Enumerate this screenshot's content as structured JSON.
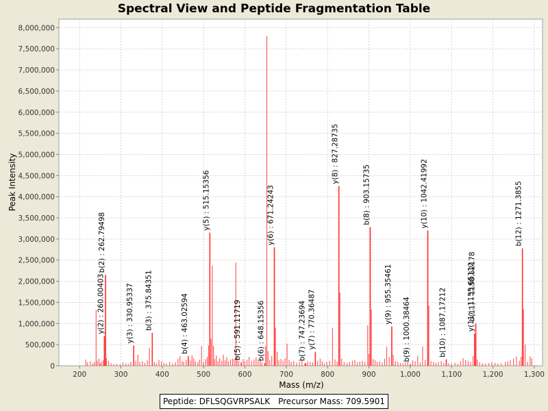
{
  "footer": {
    "peptide_label": "Peptide: DFLSQGVRPSALK",
    "precursor_label": "Precursor Mass: 709.5901"
  },
  "colors": {
    "peak": "#ff5c5c",
    "annotation_peak": "#ff3030",
    "grid": "#d4d4d4",
    "background": "#ece9d8",
    "plot_bg": "#ffffff"
  },
  "chart_data": {
    "type": "bar",
    "title": "Spectral View and Peptide Fragmentation Table",
    "xlabel": "Mass (m/z)",
    "ylabel": "Peak Intensity",
    "xlim": [
      150,
      1320
    ],
    "ylim": [
      0,
      8200000
    ],
    "xticks": [
      200,
      300,
      400,
      500,
      600,
      700,
      800,
      900,
      1000,
      1100,
      1200,
      1300
    ],
    "xtick_labels": [
      "200",
      "300",
      "400",
      "500",
      "600",
      "700",
      "800",
      "900",
      "1,000",
      "1,100",
      "1,200",
      "1,300"
    ],
    "yticks": [
      0,
      500000,
      1000000,
      1500000,
      2000000,
      2500000,
      3000000,
      3500000,
      4000000,
      4500000,
      5000000,
      5500000,
      6000000,
      6500000,
      7000000,
      7500000,
      8000000
    ],
    "ytick_labels": [
      "0",
      "500,000",
      "1,000,000",
      "1,500,000",
      "2,000,000",
      "2,500,000",
      "3,000,000",
      "3,500,000",
      "4,000,000",
      "4,500,000",
      "5,000,000",
      "5,500,000",
      "6,000,000",
      "6,500,000",
      "7,000,000",
      "7,500,000",
      "8,000,000"
    ],
    "grid": true,
    "annotations": [
      {
        "mz": 262.79498,
        "intensity": 2150000,
        "label": "b(2) : 262.79498"
      },
      {
        "mz": 260.00403,
        "intensity": 700000,
        "label": "y(2) : 260.00403"
      },
      {
        "mz": 330.95337,
        "intensity": 480000,
        "label": "y(3) : 330.95337"
      },
      {
        "mz": 375.84351,
        "intensity": 780000,
        "label": "b(3) : 375.84351"
      },
      {
        "mz": 463.02594,
        "intensity": 230000,
        "label": "b(4) : 463.02594"
      },
      {
        "mz": 515.15356,
        "intensity": 3150000,
        "label": "y(5) : 515.15356"
      },
      {
        "mz": 591.11719,
        "intensity": 80000,
        "label": "b(5) : 591.11719"
      },
      {
        "mz": 648.15356,
        "intensity": 60000,
        "label": "b(6) : 648.15356"
      },
      {
        "mz": 671.24243,
        "intensity": 2800000,
        "label": "y(6) : 671.24243"
      },
      {
        "mz": 747.23694,
        "intensity": 60000,
        "label": "b(7) : 747.23694"
      },
      {
        "mz": 770.36487,
        "intensity": 330000,
        "label": "y(7) : 770.36487"
      },
      {
        "mz": 827.28735,
        "intensity": 4250000,
        "label": "y(8) : 827.28735"
      },
      {
        "mz": 903.15735,
        "intensity": 3280000,
        "label": "b(8) : 903.15735"
      },
      {
        "mz": 955.35461,
        "intensity": 930000,
        "label": "y(9) : 955.35461"
      },
      {
        "mz": 1000.38464,
        "intensity": 40000,
        "label": "b(9) : 1000.38464"
      },
      {
        "mz": 1042.41992,
        "intensity": 3200000,
        "label": "y(10) : 1042.41992"
      },
      {
        "mz": 1087.17212,
        "intensity": 150000,
        "label": "b(10) : 1087.17212"
      },
      {
        "mz": 1155.65112,
        "intensity": 760000,
        "label": "y(11) : 1155.65112"
      },
      {
        "mz": 1158.52178,
        "intensity": 1000000,
        "label": "b(11) : 1158.52178"
      },
      {
        "mz": 1271.3855,
        "intensity": 2780000,
        "label": "b(12) : 1271.3855"
      }
    ],
    "peaks": [
      [
        215,
        150000
      ],
      [
        219,
        80000
      ],
      [
        226,
        110000
      ],
      [
        232,
        60000
      ],
      [
        236,
        90000
      ],
      [
        240,
        1320000
      ],
      [
        243,
        120000
      ],
      [
        247,
        170000
      ],
      [
        250,
        60000
      ],
      [
        253,
        90000
      ],
      [
        257,
        130000
      ],
      [
        260,
        700000
      ],
      [
        262.8,
        2150000
      ],
      [
        265,
        180000
      ],
      [
        270,
        120000
      ],
      [
        276,
        60000
      ],
      [
        283,
        40000
      ],
      [
        290,
        50000
      ],
      [
        298,
        40000
      ],
      [
        305,
        80000
      ],
      [
        312,
        60000
      ],
      [
        318,
        40000
      ],
      [
        324,
        90000
      ],
      [
        330.95,
        480000
      ],
      [
        336,
        120000
      ],
      [
        341,
        260000
      ],
      [
        346,
        90000
      ],
      [
        352,
        110000
      ],
      [
        358,
        70000
      ],
      [
        364,
        130000
      ],
      [
        369,
        420000
      ],
      [
        375.84,
        780000
      ],
      [
        381,
        90000
      ],
      [
        386,
        60000
      ],
      [
        392,
        140000
      ],
      [
        398,
        110000
      ],
      [
        404,
        70000
      ],
      [
        410,
        50000
      ],
      [
        418,
        90000
      ],
      [
        425,
        60000
      ],
      [
        432,
        80000
      ],
      [
        438,
        170000
      ],
      [
        443,
        230000
      ],
      [
        448,
        110000
      ],
      [
        452,
        90000
      ],
      [
        458,
        140000
      ],
      [
        463,
        230000
      ],
      [
        468,
        120000
      ],
      [
        472,
        250000
      ],
      [
        476,
        180000
      ],
      [
        480,
        110000
      ],
      [
        486,
        80000
      ],
      [
        490,
        140000
      ],
      [
        495,
        470000
      ],
      [
        500,
        90000
      ],
      [
        505,
        160000
      ],
      [
        509,
        210000
      ],
      [
        512,
        480000
      ],
      [
        515.15,
        3150000
      ],
      [
        518,
        640000
      ],
      [
        521,
        2370000
      ],
      [
        524,
        470000
      ],
      [
        527,
        160000
      ],
      [
        531,
        240000
      ],
      [
        535,
        110000
      ],
      [
        539,
        180000
      ],
      [
        544,
        120000
      ],
      [
        548,
        260000
      ],
      [
        552,
        130000
      ],
      [
        556,
        200000
      ],
      [
        560,
        110000
      ],
      [
        565,
        150000
      ],
      [
        570,
        170000
      ],
      [
        574,
        130000
      ],
      [
        578,
        2440000
      ],
      [
        581,
        210000
      ],
      [
        585,
        120000
      ],
      [
        591,
        80000
      ],
      [
        596,
        160000
      ],
      [
        600,
        110000
      ],
      [
        605,
        140000
      ],
      [
        610,
        210000
      ],
      [
        616,
        120000
      ],
      [
        622,
        150000
      ],
      [
        627,
        200000
      ],
      [
        632,
        110000
      ],
      [
        637,
        160000
      ],
      [
        641,
        80000
      ],
      [
        648,
        60000
      ],
      [
        650,
        470000
      ],
      [
        653,
        7800000
      ],
      [
        656,
        350000
      ],
      [
        660,
        140000
      ],
      [
        665,
        230000
      ],
      [
        671.24,
        2800000
      ],
      [
        674,
        900000
      ],
      [
        678,
        330000
      ],
      [
        682,
        130000
      ],
      [
        687,
        160000
      ],
      [
        692,
        120000
      ],
      [
        697,
        180000
      ],
      [
        702,
        520000
      ],
      [
        707,
        140000
      ],
      [
        712,
        90000
      ],
      [
        718,
        110000
      ],
      [
        725,
        70000
      ],
      [
        732,
        90000
      ],
      [
        738,
        120000
      ],
      [
        745,
        60000
      ],
      [
        752,
        110000
      ],
      [
        758,
        90000
      ],
      [
        764,
        80000
      ],
      [
        770.36,
        330000
      ],
      [
        776,
        120000
      ],
      [
        782,
        170000
      ],
      [
        787,
        110000
      ],
      [
        792,
        60000
      ],
      [
        798,
        90000
      ],
      [
        805,
        120000
      ],
      [
        812,
        900000
      ],
      [
        818,
        150000
      ],
      [
        823,
        100000
      ],
      [
        827.29,
        4250000
      ],
      [
        830,
        1730000
      ],
      [
        834,
        170000
      ],
      [
        840,
        90000
      ],
      [
        847,
        70000
      ],
      [
        853,
        90000
      ],
      [
        860,
        120000
      ],
      [
        866,
        140000
      ],
      [
        872,
        80000
      ],
      [
        878,
        100000
      ],
      [
        884,
        120000
      ],
      [
        890,
        90000
      ],
      [
        897,
        960000
      ],
      [
        900,
        280000
      ],
      [
        903.16,
        3280000
      ],
      [
        906,
        1330000
      ],
      [
        910,
        160000
      ],
      [
        915,
        130000
      ],
      [
        920,
        90000
      ],
      [
        926,
        110000
      ],
      [
        932,
        80000
      ],
      [
        938,
        160000
      ],
      [
        943,
        450000
      ],
      [
        949,
        210000
      ],
      [
        955.35,
        930000
      ],
      [
        959,
        260000
      ],
      [
        964,
        110000
      ],
      [
        970,
        90000
      ],
      [
        976,
        70000
      ],
      [
        982,
        60000
      ],
      [
        988,
        80000
      ],
      [
        994,
        90000
      ],
      [
        1000.38,
        40000
      ],
      [
        1006,
        130000
      ],
      [
        1012,
        110000
      ],
      [
        1018,
        230000
      ],
      [
        1024,
        80000
      ],
      [
        1030,
        460000
      ],
      [
        1036,
        140000
      ],
      [
        1042.42,
        3200000
      ],
      [
        1045,
        1420000
      ],
      [
        1050,
        110000
      ],
      [
        1056,
        90000
      ],
      [
        1062,
        70000
      ],
      [
        1068,
        90000
      ],
      [
        1075,
        110000
      ],
      [
        1081,
        60000
      ],
      [
        1087.17,
        150000
      ],
      [
        1093,
        60000
      ],
      [
        1100,
        50000
      ],
      [
        1108,
        70000
      ],
      [
        1115,
        50000
      ],
      [
        1122,
        110000
      ],
      [
        1128,
        180000
      ],
      [
        1134,
        140000
      ],
      [
        1140,
        120000
      ],
      [
        1146,
        90000
      ],
      [
        1152,
        230000
      ],
      [
        1155.65,
        760000
      ],
      [
        1158.52,
        1000000
      ],
      [
        1162,
        150000
      ],
      [
        1168,
        80000
      ],
      [
        1175,
        60000
      ],
      [
        1182,
        50000
      ],
      [
        1190,
        60000
      ],
      [
        1197,
        80000
      ],
      [
        1205,
        70000
      ],
      [
        1212,
        50000
      ],
      [
        1220,
        60000
      ],
      [
        1230,
        90000
      ],
      [
        1236,
        110000
      ],
      [
        1242,
        130000
      ],
      [
        1250,
        170000
      ],
      [
        1257,
        220000
      ],
      [
        1264,
        120000
      ],
      [
        1268,
        210000
      ],
      [
        1271.39,
        2780000
      ],
      [
        1274,
        1340000
      ],
      [
        1278,
        500000
      ],
      [
        1284,
        90000
      ],
      [
        1290,
        220000
      ],
      [
        1294,
        180000
      ]
    ]
  }
}
